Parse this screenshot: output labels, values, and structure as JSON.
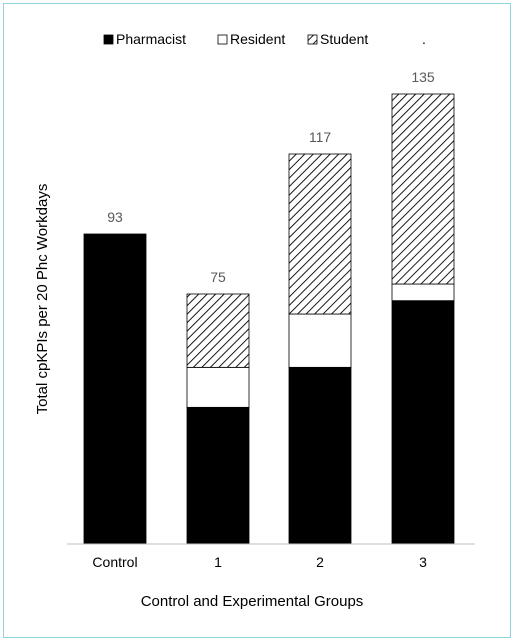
{
  "chart_data": {
    "type": "bar",
    "stacked": true,
    "xlabel": "Control and Experimental Groups",
    "ylabel": "Total cpKPIs per 20 Phc Workdays",
    "categories": [
      "Control",
      "1",
      "2",
      "3"
    ],
    "totals": [
      "93",
      "75",
      "117",
      "135"
    ],
    "legend_position": "top",
    "legend_extra": ".",
    "series": [
      {
        "name": "Pharmacist",
        "fill": "solid",
        "color": "#000000",
        "values": [
          93,
          41,
          53,
          73
        ]
      },
      {
        "name": "Resident",
        "fill": "open",
        "color": "#ffffff",
        "values": [
          0,
          12,
          16,
          5
        ]
      },
      {
        "name": "Student",
        "fill": "hatched",
        "color": "#000000",
        "values": [
          0,
          22,
          48,
          57
        ]
      }
    ],
    "ylim": [
      0,
      135
    ],
    "grid": false
  }
}
